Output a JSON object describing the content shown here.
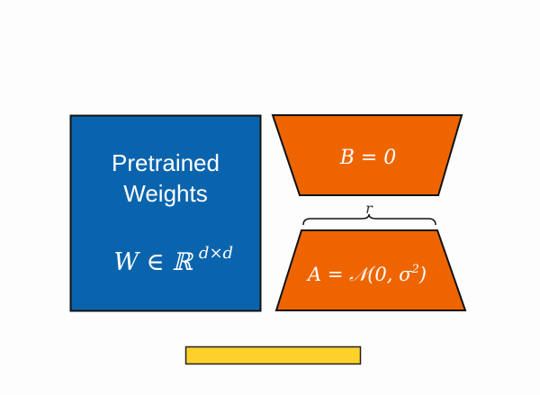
{
  "pretrained": {
    "line1": "Pretrained",
    "line2": "Weights",
    "formula": "W ∈ ℝ",
    "formula_sup": "d×d",
    "color": "#0a64ad"
  },
  "matrix_b": {
    "label": "B = 0",
    "color": "#ee6500"
  },
  "matrix_a": {
    "label": "A = 𝒩(0, σ",
    "label_sup": "2",
    "label_end": ")",
    "color": "#ee6500"
  },
  "rank": {
    "label": "r"
  },
  "bar": {
    "color": "#fdd12a"
  }
}
